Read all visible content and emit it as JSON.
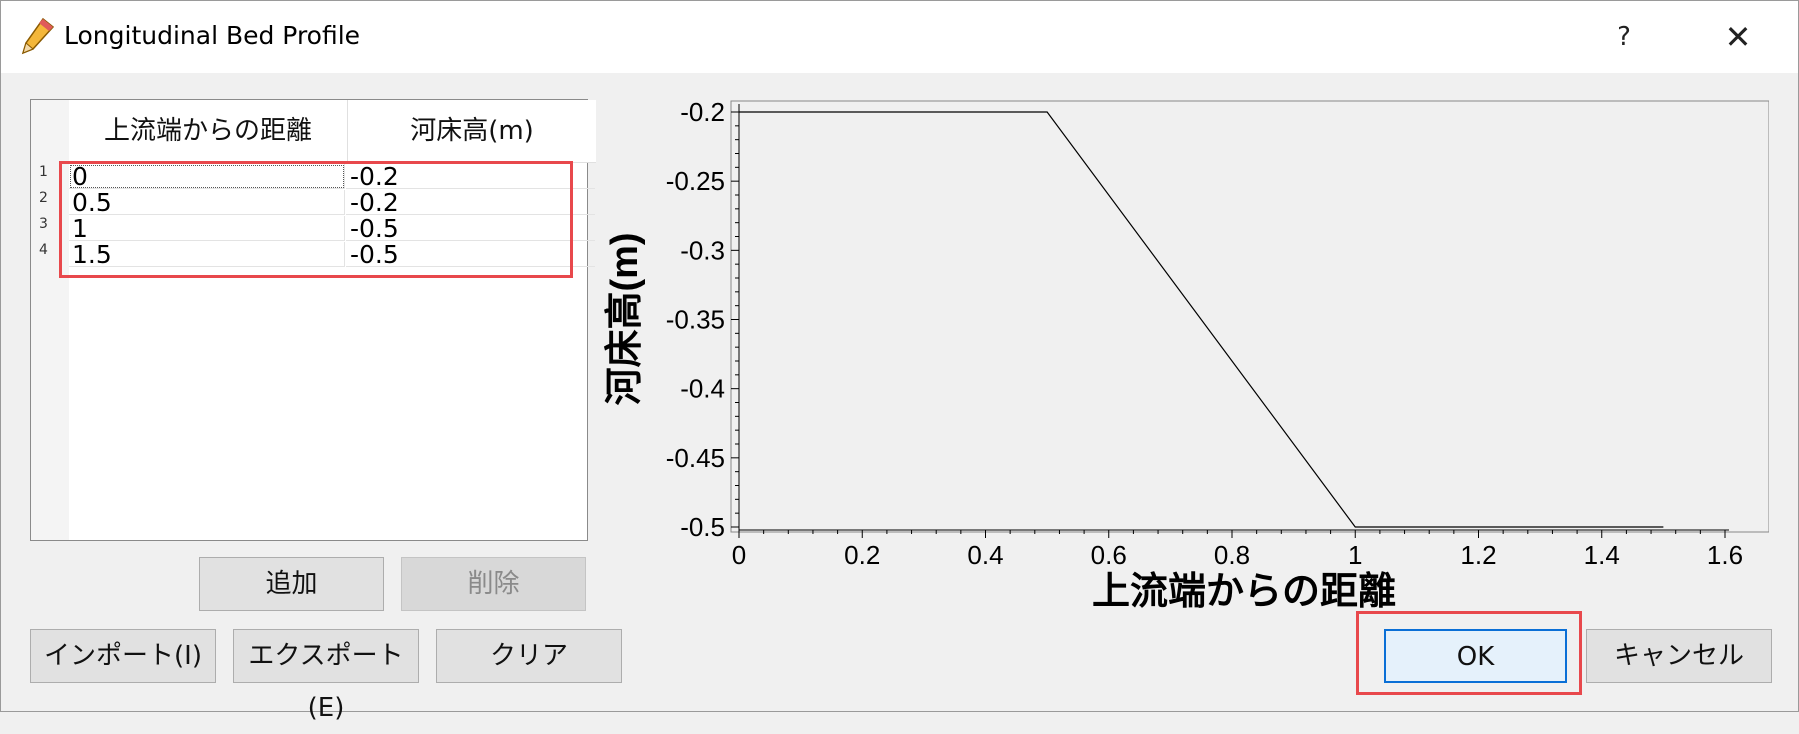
{
  "window": {
    "title": "Longitudinal Bed Profile",
    "icon": "pencil-icon",
    "help_label": "?",
    "close_label": "✕"
  },
  "table": {
    "columns": [
      "上流端からの距離",
      "河床高(m)"
    ],
    "rows": [
      {
        "index": "1",
        "distance": "0",
        "elevation": "-0.2"
      },
      {
        "index": "2",
        "distance": "0.5",
        "elevation": "-0.2"
      },
      {
        "index": "3",
        "distance": "1",
        "elevation": "-0.5"
      },
      {
        "index": "4",
        "distance": "1.5",
        "elevation": "-0.5"
      }
    ]
  },
  "buttons": {
    "add": "追加",
    "delete": "削除",
    "import": "インポート(I)",
    "export": "エクスポート(E)",
    "clear": "クリア",
    "ok": "OK",
    "cancel": "キャンセル"
  },
  "chart_data": {
    "type": "line",
    "xlabel": "上流端からの距離",
    "ylabel": "河床高(m)",
    "xlim": [
      0,
      1.6
    ],
    "ylim": [
      -0.5,
      -0.2
    ],
    "xticks": [
      "0",
      "0.2",
      "0.4",
      "0.6",
      "0.8",
      "1",
      "1.2",
      "1.4",
      "1.6"
    ],
    "yticks": [
      "-0.2",
      "-0.25",
      "-0.3",
      "-0.35",
      "-0.4",
      "-0.45",
      "-0.5"
    ],
    "series": [
      {
        "x": [
          0,
          0.5,
          1,
          1.5
        ],
        "y": [
          -0.2,
          -0.2,
          -0.5,
          -0.5
        ]
      }
    ],
    "grid": false,
    "line_color": "#000000"
  },
  "colors": {
    "highlight": "#e8484c",
    "default_button_border": "#0a6fd6"
  }
}
